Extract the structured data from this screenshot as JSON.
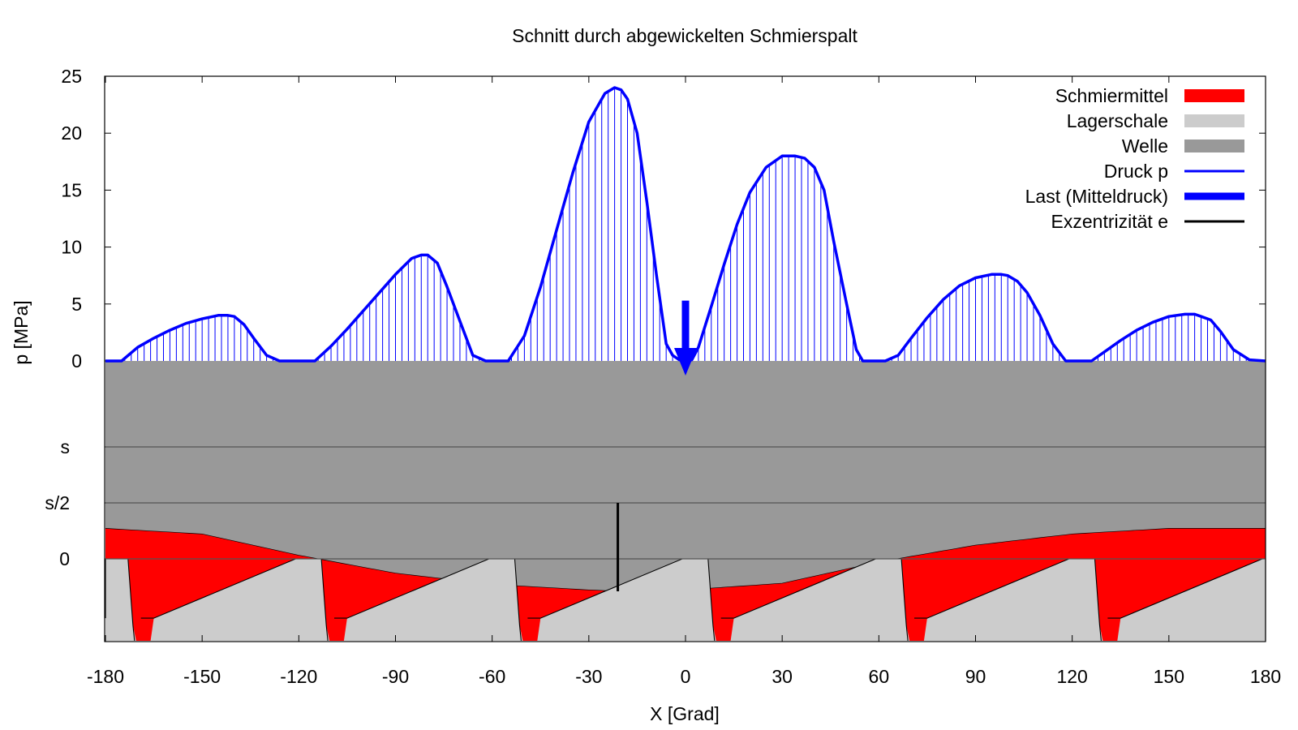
{
  "chart_data": {
    "type": "area",
    "title": "Schnitt durch abgewickelten Schmierspalt",
    "xlabel": "X [Grad]",
    "ylabel": "p [MPa]",
    "xlim": [
      -180,
      180
    ],
    "ylim": [
      0,
      25
    ],
    "x_ticks": [
      "-180",
      "-150",
      "-120",
      "-90",
      "-60",
      "-30",
      "0",
      "30",
      "60",
      "90",
      "120",
      "150",
      "180"
    ],
    "y_ticks": [
      "0",
      "5",
      "10",
      "15",
      "20",
      "25"
    ],
    "gap_ticks": [
      "s",
      "s/2",
      "0"
    ],
    "grid": true,
    "legend_position": "top-right",
    "legend": [
      {
        "label": "Schmiermittel",
        "color": "#ff0000",
        "style": "box"
      },
      {
        "label": "Lagerschale",
        "color": "#cccccc",
        "style": "box"
      },
      {
        "label": "Welle",
        "color": "#999999",
        "style": "box"
      },
      {
        "label": "Druck p",
        "color": "#0000ff",
        "style": "line"
      },
      {
        "label": "Last (Mitteldruck)",
        "color": "#0000ff",
        "style": "thick-line"
      },
      {
        "label": "Exzentrizität e",
        "color": "#000000",
        "style": "line"
      }
    ],
    "colors": {
      "schmiermittel": "#ff0000",
      "lagerschale": "#cccccc",
      "welle": "#999999",
      "druck": "#0000ff",
      "exzentrizitaet": "#000000",
      "grid": "#555555"
    },
    "pressure_series": {
      "name": "Druck p",
      "x": [
        -180,
        -175,
        -170,
        -165,
        -160,
        -155,
        -150,
        -145,
        -142,
        -140,
        -137,
        -134,
        -130,
        -126,
        -122,
        -118,
        -115,
        -110,
        -105,
        -100,
        -95,
        -90,
        -85,
        -82,
        -80,
        -77,
        -74,
        -70,
        -66,
        -62,
        -58,
        -55,
        -50,
        -45,
        -40,
        -35,
        -30,
        -25,
        -22,
        -20,
        -18,
        -15,
        -12,
        -9,
        -6,
        -4,
        -2,
        0,
        2,
        4,
        8,
        12,
        16,
        20,
        25,
        30,
        34,
        37,
        40,
        43,
        46,
        50,
        53,
        55,
        58,
        62,
        66,
        70,
        75,
        80,
        85,
        90,
        95,
        98,
        100,
        103,
        106,
        110,
        114,
        118,
        122,
        126,
        130,
        135,
        140,
        145,
        150,
        155,
        158,
        160,
        163,
        166,
        170,
        175,
        180
      ],
      "y": [
        0,
        0,
        1.2,
        2.0,
        2.7,
        3.3,
        3.7,
        4.0,
        4.0,
        3.9,
        3.2,
        2.0,
        0.5,
        0,
        0,
        0,
        0,
        1.3,
        2.8,
        4.4,
        6.0,
        7.6,
        9.0,
        9.3,
        9.3,
        8.6,
        6.5,
        3.5,
        0.5,
        0,
        0,
        0,
        2.2,
        6.5,
        11.5,
        16.5,
        21.0,
        23.5,
        24.0,
        23.8,
        23.0,
        20.0,
        14.0,
        7.5,
        1.5,
        0.5,
        0.1,
        0,
        0.1,
        1.2,
        4.8,
        8.5,
        12.0,
        14.8,
        17.0,
        18.0,
        18.0,
        17.8,
        17.0,
        15.0,
        10.5,
        5.0,
        1.0,
        0,
        0,
        0,
        0.5,
        2.0,
        3.8,
        5.4,
        6.6,
        7.3,
        7.6,
        7.6,
        7.5,
        7.0,
        6.0,
        4.0,
        1.5,
        0,
        0,
        0,
        0.8,
        1.8,
        2.7,
        3.4,
        3.9,
        4.1,
        4.1,
        3.9,
        3.6,
        2.6,
        1.0,
        0.1,
        0
      ]
    },
    "last": {
      "name": "Last (Mitteldruck)",
      "x": 0,
      "p": 5.3
    },
    "exzentrizitaet": {
      "name": "Exzentrizität e",
      "x": -21
    },
    "welle_lower_edge": {
      "x": [
        -180,
        -150,
        -120,
        -90,
        -60,
        -30,
        -21,
        0,
        30,
        60,
        90,
        120,
        150,
        180
      ],
      "gap": [
        0.27,
        0.22,
        0.03,
        -0.13,
        -0.23,
        -0.28,
        -0.29,
        -0.28,
        -0.22,
        -0.03,
        0.12,
        0.22,
        0.27,
        0.27
      ]
    },
    "lagerschale_pads": {
      "period_deg": 60,
      "rise_deg": 44,
      "flat_deg": 8,
      "groove_deg": 8,
      "pocket_depth": 0.53
    }
  }
}
